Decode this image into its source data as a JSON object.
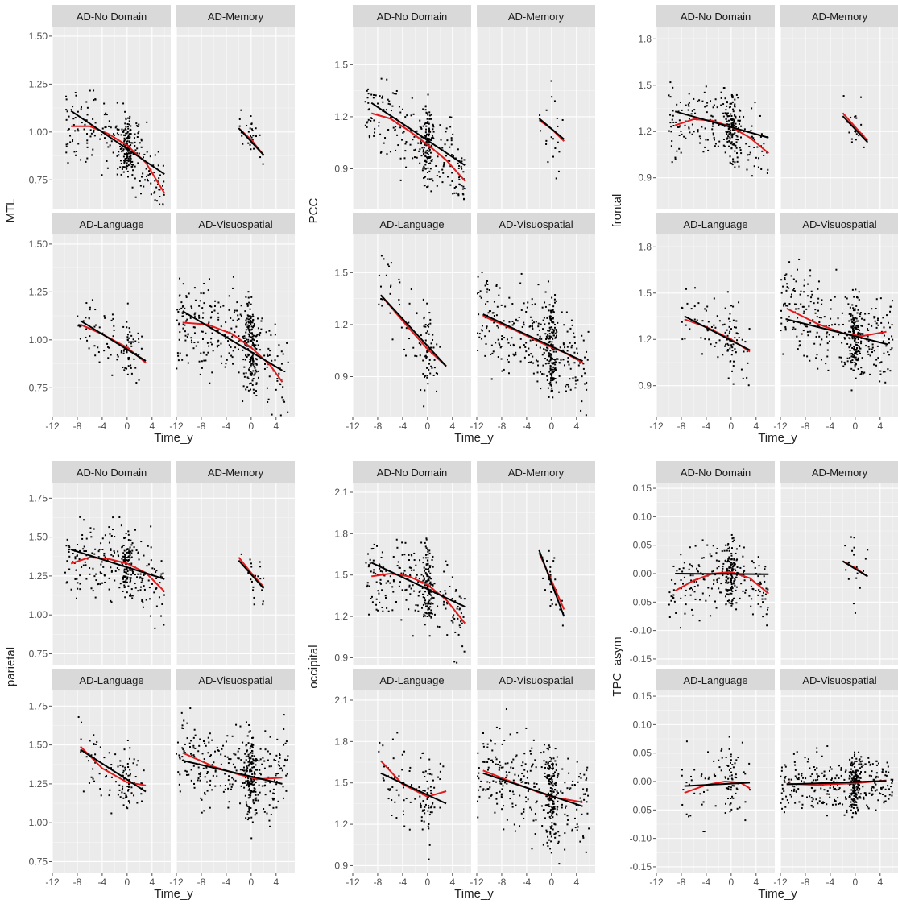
{
  "figure": {
    "xlabel": "Time_y",
    "facet_labels": [
      "AD-No Domain",
      "AD-Memory",
      "AD-Language",
      "AD-Visuospatial"
    ]
  },
  "colors": {
    "panel_bg": "#ebebeb",
    "grid_major": "#ffffff",
    "grid_minor": "#f5f5f5",
    "strip_bg": "#d9d9d9",
    "points": "#000000",
    "linear_fit": "#000000",
    "quadratic_fit": "#e31a1c"
  },
  "chart_data": [
    {
      "type": "scatter",
      "ylabel": "MTL",
      "x_ticks": [
        -12,
        -8,
        -4,
        0,
        4
      ],
      "y_ticks": [
        "0.75",
        "1.00",
        "1.25",
        "1.50"
      ],
      "xlim": [
        -12,
        7
      ],
      "ylim": [
        0.6,
        1.55
      ],
      "facets": [
        {
          "label": "AD-No Domain",
          "x_range": [
            -10,
            6
          ],
          "n": 320,
          "linear": [
            [
              -9,
              1.11
            ],
            [
              6,
              0.78
            ]
          ],
          "quadratic": [
            [
              -9,
              1.03
            ],
            [
              -6,
              1.03
            ],
            [
              -3,
              0.99
            ],
            [
              0,
              0.93
            ],
            [
              3,
              0.84
            ],
            [
              6,
              0.68
            ]
          ],
          "spread": 0.09
        },
        {
          "label": "AD-Memory",
          "x_range": [
            -2,
            2
          ],
          "n": 30,
          "linear": [
            [
              -2,
              1.02
            ],
            [
              2,
              0.88
            ]
          ],
          "quadratic": [
            [
              -2,
              1.02
            ],
            [
              0,
              0.96
            ],
            [
              2,
              0.88
            ]
          ],
          "spread": 0.05
        },
        {
          "label": "AD-Language",
          "x_range": [
            -8,
            3
          ],
          "n": 110,
          "linear": [
            [
              -7.5,
              1.1
            ],
            [
              3,
              0.89
            ]
          ],
          "quadratic": [
            [
              -7.5,
              1.08
            ],
            [
              -4,
              1.03
            ],
            [
              0,
              0.96
            ],
            [
              3,
              0.88
            ]
          ],
          "spread": 0.08
        },
        {
          "label": "AD-Visuospatial",
          "x_range": [
            -12,
            6
          ],
          "n": 420,
          "linear": [
            [
              -11,
              1.15
            ],
            [
              5,
              0.84
            ]
          ],
          "quadratic": [
            [
              -11,
              1.09
            ],
            [
              -7,
              1.08
            ],
            [
              -3,
              1.03
            ],
            [
              0,
              0.96
            ],
            [
              3,
              0.87
            ],
            [
              5,
              0.78
            ]
          ],
          "spread": 0.12
        }
      ]
    },
    {
      "type": "scatter",
      "ylabel": "PCC",
      "x_ticks": [
        -12,
        -8,
        -4,
        0,
        4
      ],
      "y_ticks": [
        "0.9",
        "1.2",
        "1.5"
      ],
      "xlim": [
        -12,
        7
      ],
      "ylim": [
        0.67,
        1.72
      ],
      "facets": [
        {
          "label": "AD-No Domain",
          "x_range": [
            -10,
            6
          ],
          "n": 320,
          "linear": [
            [
              -9,
              1.28
            ],
            [
              6,
              0.92
            ]
          ],
          "quadratic": [
            [
              -9,
              1.22
            ],
            [
              -6,
              1.19
            ],
            [
              -3,
              1.12
            ],
            [
              0,
              1.04
            ],
            [
              3,
              0.95
            ],
            [
              6,
              0.83
            ]
          ],
          "spread": 0.11
        },
        {
          "label": "AD-Memory",
          "x_range": [
            -2,
            2
          ],
          "n": 20,
          "linear": [
            [
              -2,
              1.19
            ],
            [
              2,
              1.07
            ]
          ],
          "quadratic": [
            [
              -2,
              1.18
            ],
            [
              0,
              1.13
            ],
            [
              2,
              1.06
            ]
          ],
          "spread": 0.12
        },
        {
          "label": "AD-Language",
          "x_range": [
            -8,
            3
          ],
          "n": 100,
          "linear": [
            [
              -7.5,
              1.37
            ],
            [
              3,
              0.96
            ]
          ],
          "quadratic": [
            [
              -7.5,
              1.37
            ],
            [
              -3,
              1.18
            ],
            [
              0,
              1.06
            ],
            [
              3,
              0.96
            ]
          ],
          "spread": 0.14
        },
        {
          "label": "AD-Visuospatial",
          "x_range": [
            -12,
            6
          ],
          "n": 420,
          "linear": [
            [
              -11,
              1.26
            ],
            [
              5,
              0.99
            ]
          ],
          "quadratic": [
            [
              -11,
              1.25
            ],
            [
              -6,
              1.17
            ],
            [
              -2,
              1.1
            ],
            [
              2,
              1.04
            ],
            [
              5,
              0.98
            ]
          ],
          "spread": 0.13
        }
      ]
    },
    {
      "type": "scatter",
      "ylabel": "frontal",
      "x_ticks": [
        -12,
        -8,
        -4,
        0,
        4
      ],
      "y_ticks": [
        "0.9",
        "1.2",
        "1.5",
        "1.8"
      ],
      "xlim": [
        -12,
        7
      ],
      "ylim": [
        0.7,
        1.88
      ],
      "facets": [
        {
          "label": "AD-No Domain",
          "x_range": [
            -10,
            6
          ],
          "n": 320,
          "linear": [
            [
              -9,
              1.33
            ],
            [
              6,
              1.16
            ]
          ],
          "quadratic": [
            [
              -9,
              1.24
            ],
            [
              -6,
              1.28
            ],
            [
              -3,
              1.27
            ],
            [
              0,
              1.23
            ],
            [
              3,
              1.16
            ],
            [
              6,
              1.06
            ]
          ],
          "spread": 0.11
        },
        {
          "label": "AD-Memory",
          "x_range": [
            -2,
            2
          ],
          "n": 20,
          "linear": [
            [
              -2,
              1.3
            ],
            [
              2,
              1.13
            ]
          ],
          "quadratic": [
            [
              -2,
              1.32
            ],
            [
              0,
              1.23
            ],
            [
              2,
              1.14
            ]
          ],
          "spread": 0.1
        },
        {
          "label": "AD-Language",
          "x_range": [
            -8,
            3
          ],
          "n": 110,
          "linear": [
            [
              -7.5,
              1.35
            ],
            [
              3,
              1.13
            ]
          ],
          "quadratic": [
            [
              -7.5,
              1.33
            ],
            [
              -4,
              1.28
            ],
            [
              0,
              1.2
            ],
            [
              3,
              1.12
            ]
          ],
          "spread": 0.12
        },
        {
          "label": "AD-Visuospatial",
          "x_range": [
            -12,
            6
          ],
          "n": 420,
          "linear": [
            [
              -11,
              1.33
            ],
            [
              5,
              1.17
            ]
          ],
          "quadratic": [
            [
              -11,
              1.4
            ],
            [
              -6,
              1.3
            ],
            [
              -2,
              1.24
            ],
            [
              1,
              1.22
            ],
            [
              5,
              1.25
            ]
          ],
          "spread": 0.14
        }
      ]
    },
    {
      "type": "scatter",
      "ylabel": "parietal",
      "x_ticks": [
        -12,
        -8,
        -4,
        0,
        4
      ],
      "y_ticks": [
        "0.75",
        "1.00",
        "1.25",
        "1.50",
        "1.75"
      ],
      "xlim": [
        -12,
        7
      ],
      "ylim": [
        0.68,
        1.85
      ],
      "facets": [
        {
          "label": "AD-No Domain",
          "x_range": [
            -10,
            6
          ],
          "n": 320,
          "linear": [
            [
              -9,
              1.42
            ],
            [
              6,
              1.23
            ]
          ],
          "quadratic": [
            [
              -9,
              1.33
            ],
            [
              -6,
              1.37
            ],
            [
              -3,
              1.36
            ],
            [
              0,
              1.33
            ],
            [
              3,
              1.27
            ],
            [
              6,
              1.15
            ]
          ],
          "spread": 0.12
        },
        {
          "label": "AD-Memory",
          "x_range": [
            -2,
            2
          ],
          "n": 20,
          "linear": [
            [
              -2,
              1.35
            ],
            [
              2,
              1.17
            ]
          ],
          "quadratic": [
            [
              -2,
              1.37
            ],
            [
              0,
              1.27
            ],
            [
              2,
              1.18
            ]
          ],
          "spread": 0.08
        },
        {
          "label": "AD-Language",
          "x_range": [
            -8,
            3
          ],
          "n": 110,
          "linear": [
            [
              -7.5,
              1.47
            ],
            [
              3,
              1.2
            ]
          ],
          "quadratic": [
            [
              -7.5,
              1.49
            ],
            [
              -4,
              1.35
            ],
            [
              0,
              1.26
            ],
            [
              3,
              1.24
            ]
          ],
          "spread": 0.11
        },
        {
          "label": "AD-Visuospatial",
          "x_range": [
            -12,
            6
          ],
          "n": 420,
          "linear": [
            [
              -11,
              1.4
            ],
            [
              5,
              1.25
            ]
          ],
          "quadratic": [
            [
              -11,
              1.45
            ],
            [
              -6,
              1.36
            ],
            [
              -2,
              1.31
            ],
            [
              1,
              1.28
            ],
            [
              5,
              1.29
            ]
          ],
          "spread": 0.14
        }
      ]
    },
    {
      "type": "scatter",
      "ylabel": "occipital",
      "x_ticks": [
        -12,
        -8,
        -4,
        0,
        4
      ],
      "y_ticks": [
        "0.9",
        "1.2",
        "1.5",
        "1.8",
        "2.1"
      ],
      "xlim": [
        -12,
        7
      ],
      "ylim": [
        0.85,
        2.17
      ],
      "facets": [
        {
          "label": "AD-No Domain",
          "x_range": [
            -10,
            6
          ],
          "n": 320,
          "linear": [
            [
              -9,
              1.59
            ],
            [
              6,
              1.27
            ]
          ],
          "quadratic": [
            [
              -9,
              1.49
            ],
            [
              -6,
              1.51
            ],
            [
              -3,
              1.49
            ],
            [
              0,
              1.43
            ],
            [
              3,
              1.32
            ],
            [
              6,
              1.15
            ]
          ],
          "spread": 0.15
        },
        {
          "label": "AD-Memory",
          "x_range": [
            -2,
            2
          ],
          "n": 25,
          "linear": [
            [
              -2,
              1.68
            ],
            [
              2,
              1.2
            ]
          ],
          "quadratic": [
            [
              -2,
              1.66
            ],
            [
              0,
              1.46
            ],
            [
              2,
              1.25
            ]
          ],
          "spread": 0.14
        },
        {
          "label": "AD-Language",
          "x_range": [
            -8,
            3
          ],
          "n": 110,
          "linear": [
            [
              -7.5,
              1.57
            ],
            [
              3,
              1.35
            ]
          ],
          "quadratic": [
            [
              -7.5,
              1.66
            ],
            [
              -4,
              1.49
            ],
            [
              0,
              1.4
            ],
            [
              3,
              1.44
            ]
          ],
          "spread": 0.15
        },
        {
          "label": "AD-Visuospatial",
          "x_range": [
            -12,
            6
          ],
          "n": 420,
          "linear": [
            [
              -11,
              1.57
            ],
            [
              5,
              1.33
            ]
          ],
          "quadratic": [
            [
              -11,
              1.59
            ],
            [
              -6,
              1.5
            ],
            [
              -2,
              1.43
            ],
            [
              1,
              1.39
            ],
            [
              5,
              1.36
            ]
          ],
          "spread": 0.18
        }
      ]
    },
    {
      "type": "scatter",
      "ylabel": "TPC_asym",
      "x_ticks": [
        -12,
        -8,
        -4,
        0,
        4
      ],
      "y_ticks": [
        "-0.15",
        "-0.10",
        "-0.05",
        "0.00",
        "0.05",
        "0.10",
        "0.15"
      ],
      "xlim": [
        -12,
        7
      ],
      "ylim": [
        -0.16,
        0.16
      ],
      "facets": [
        {
          "label": "AD-No Domain",
          "x_range": [
            -10,
            6
          ],
          "n": 320,
          "linear": [
            [
              -9,
              0.0
            ],
            [
              6,
              -0.001
            ]
          ],
          "quadratic": [
            [
              -9,
              -0.03
            ],
            [
              -6,
              -0.012
            ],
            [
              -3,
              0.0
            ],
            [
              0,
              0.003
            ],
            [
              3,
              -0.008
            ],
            [
              6,
              -0.035
            ]
          ],
          "spread": 0.03
        },
        {
          "label": "AD-Memory",
          "x_range": [
            -2,
            2
          ],
          "n": 20,
          "linear": [
            [
              -2,
              0.022
            ],
            [
              2,
              -0.005
            ]
          ],
          "quadratic": [
            [
              -2,
              0.022
            ],
            [
              0,
              0.01
            ],
            [
              2,
              -0.005
            ]
          ],
          "spread": 0.03
        },
        {
          "label": "AD-Language",
          "x_range": [
            -8,
            3
          ],
          "n": 100,
          "linear": [
            [
              -7.5,
              -0.008
            ],
            [
              3,
              -0.002
            ]
          ],
          "quadratic": [
            [
              -7.5,
              -0.02
            ],
            [
              -4,
              -0.006
            ],
            [
              -1,
              0.0
            ],
            [
              1.5,
              -0.002
            ],
            [
              3,
              -0.012
            ]
          ],
          "spread": 0.035
        },
        {
          "label": "AD-Visuospatial",
          "x_range": [
            -12,
            6
          ],
          "n": 420,
          "linear": [
            [
              -11,
              -0.005
            ],
            [
              5,
              0.001
            ]
          ],
          "quadratic": [
            [
              -11,
              -0.004
            ],
            [
              -6,
              -0.006
            ],
            [
              -2,
              -0.004
            ],
            [
              1,
              -0.002
            ],
            [
              5,
              0.002
            ]
          ],
          "spread": 0.025
        }
      ]
    }
  ]
}
